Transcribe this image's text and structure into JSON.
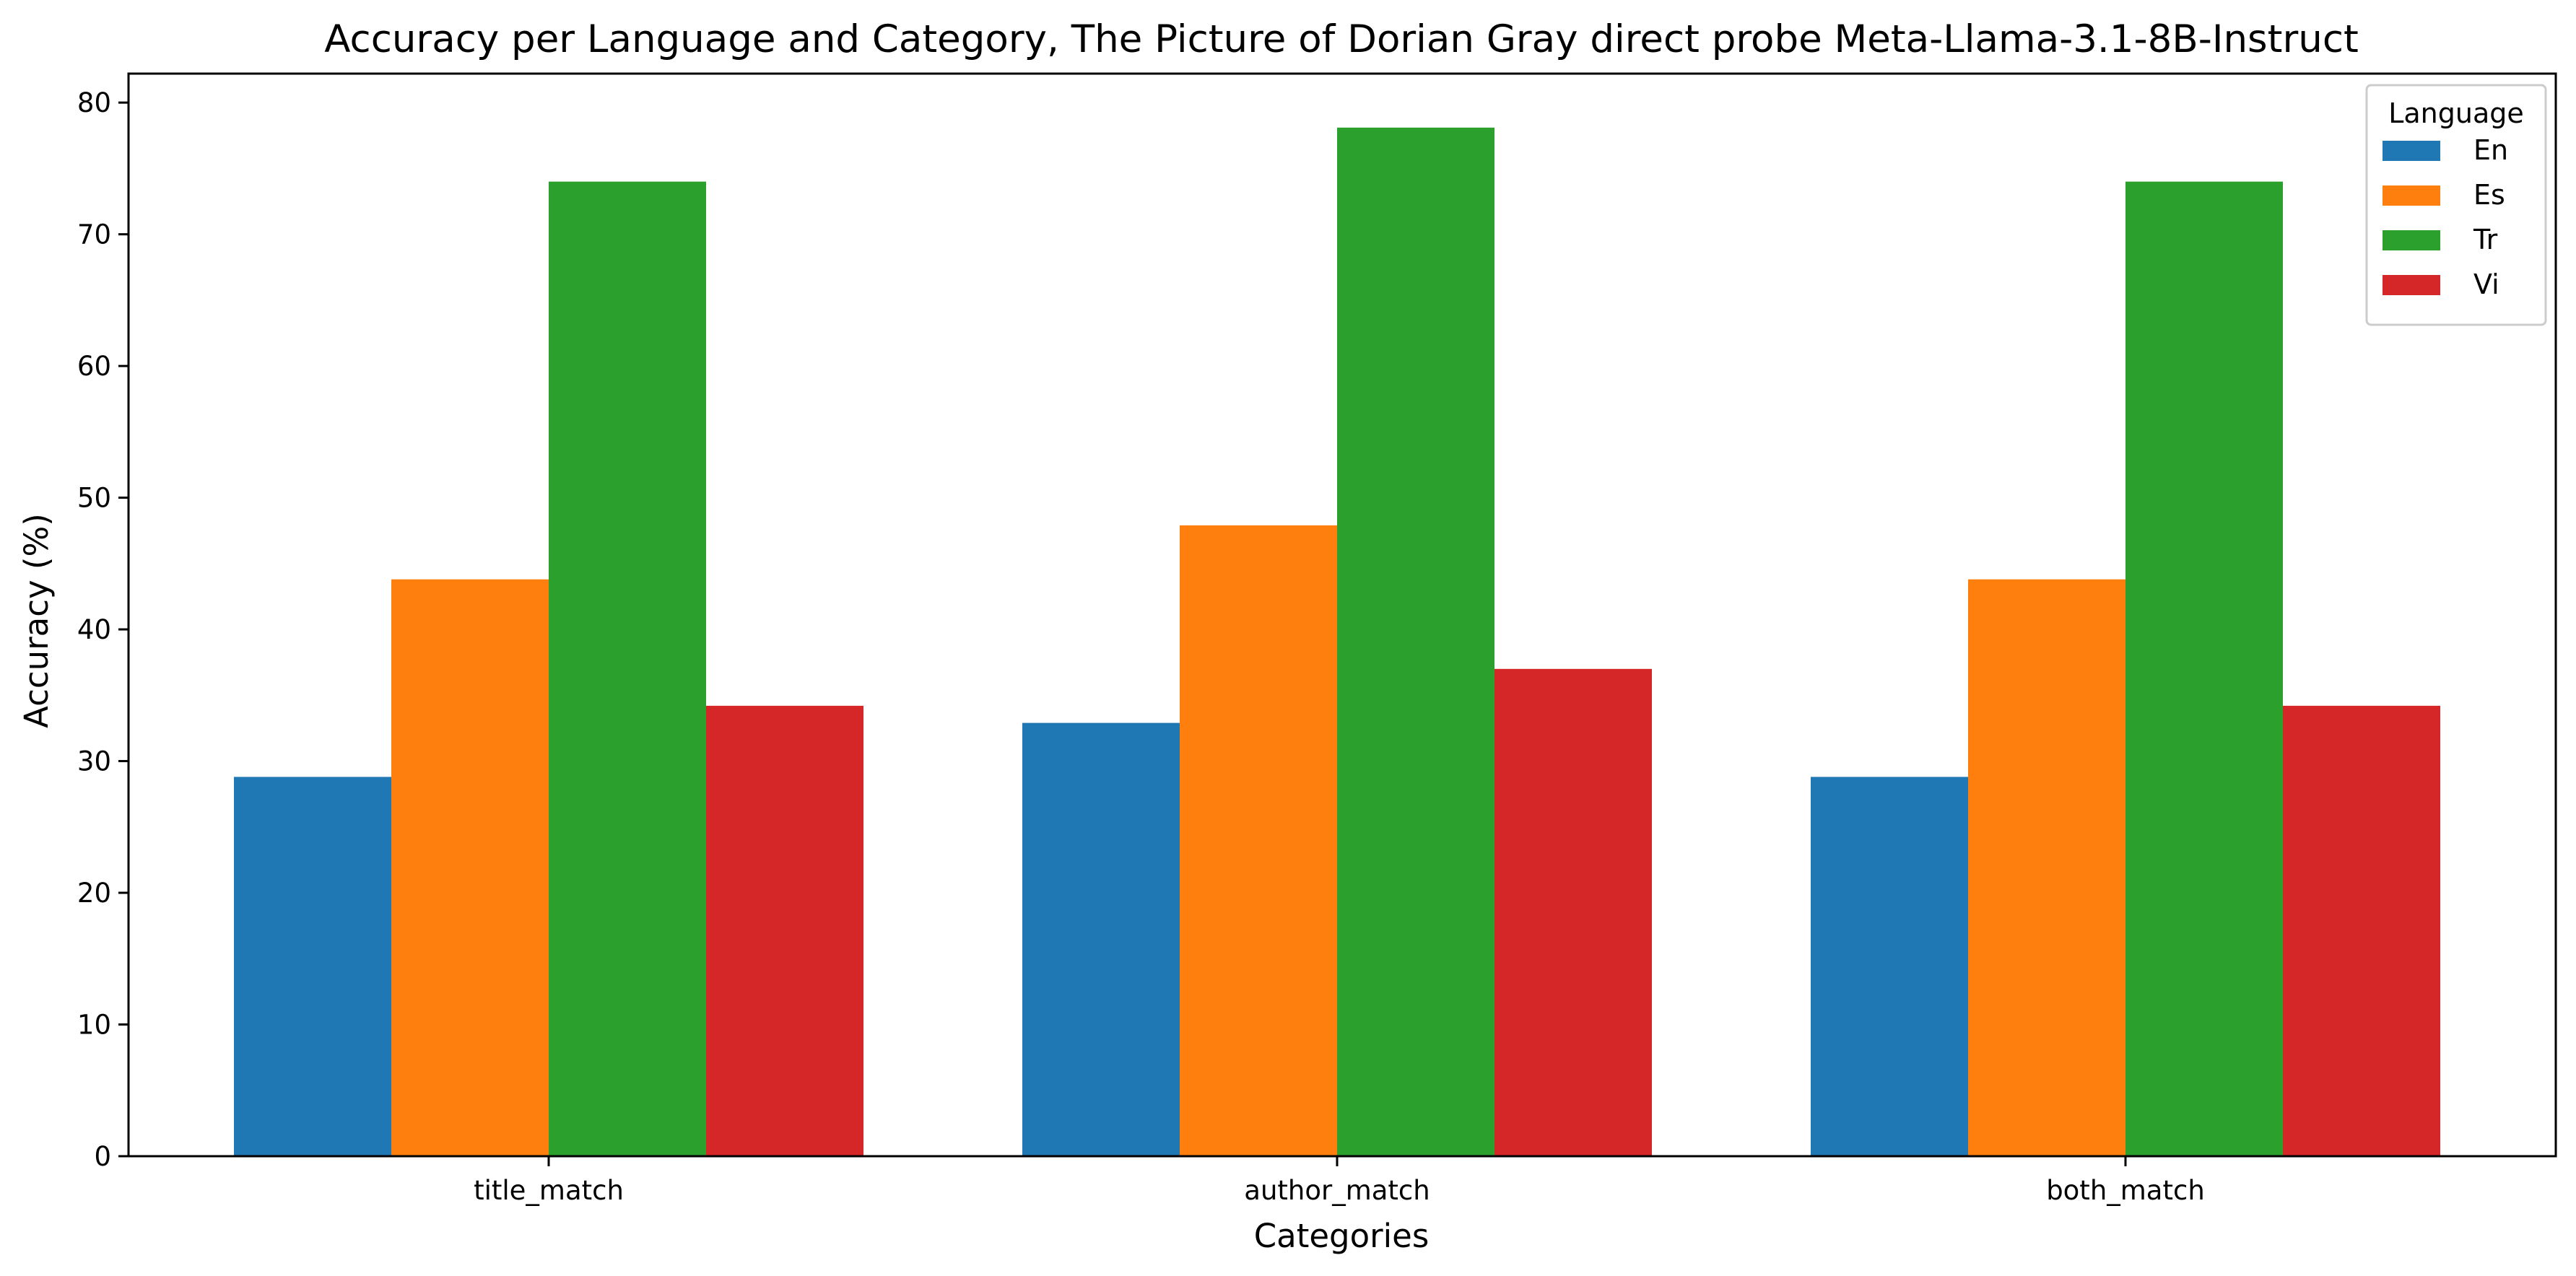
{
  "chart_data": {
    "type": "bar",
    "title": "Accuracy per Language and Category, The Picture of Dorian Gray direct probe Meta-Llama-3.1-8B-Instruct",
    "xlabel": "Categories",
    "ylabel": "Accuracy (%)",
    "categories": [
      "title_match",
      "author_match",
      "both_match"
    ],
    "ylim": [
      0,
      82.2
    ],
    "yticks": [
      0,
      10,
      20,
      30,
      40,
      50,
      60,
      70,
      80
    ],
    "grid": false,
    "legend": {
      "title": "Language",
      "placement": "top-right"
    },
    "series": [
      {
        "name": "En",
        "color": "#1f77b4",
        "values": [
          28.8,
          32.9,
          28.8
        ]
      },
      {
        "name": "Es",
        "color": "#ff7f0e",
        "values": [
          43.8,
          47.9,
          43.8
        ]
      },
      {
        "name": "Tr",
        "color": "#2ca02c",
        "values": [
          74.0,
          78.1,
          74.0
        ]
      },
      {
        "name": "Vi",
        "color": "#d62728",
        "values": [
          34.2,
          37.0,
          34.2
        ]
      }
    ]
  }
}
